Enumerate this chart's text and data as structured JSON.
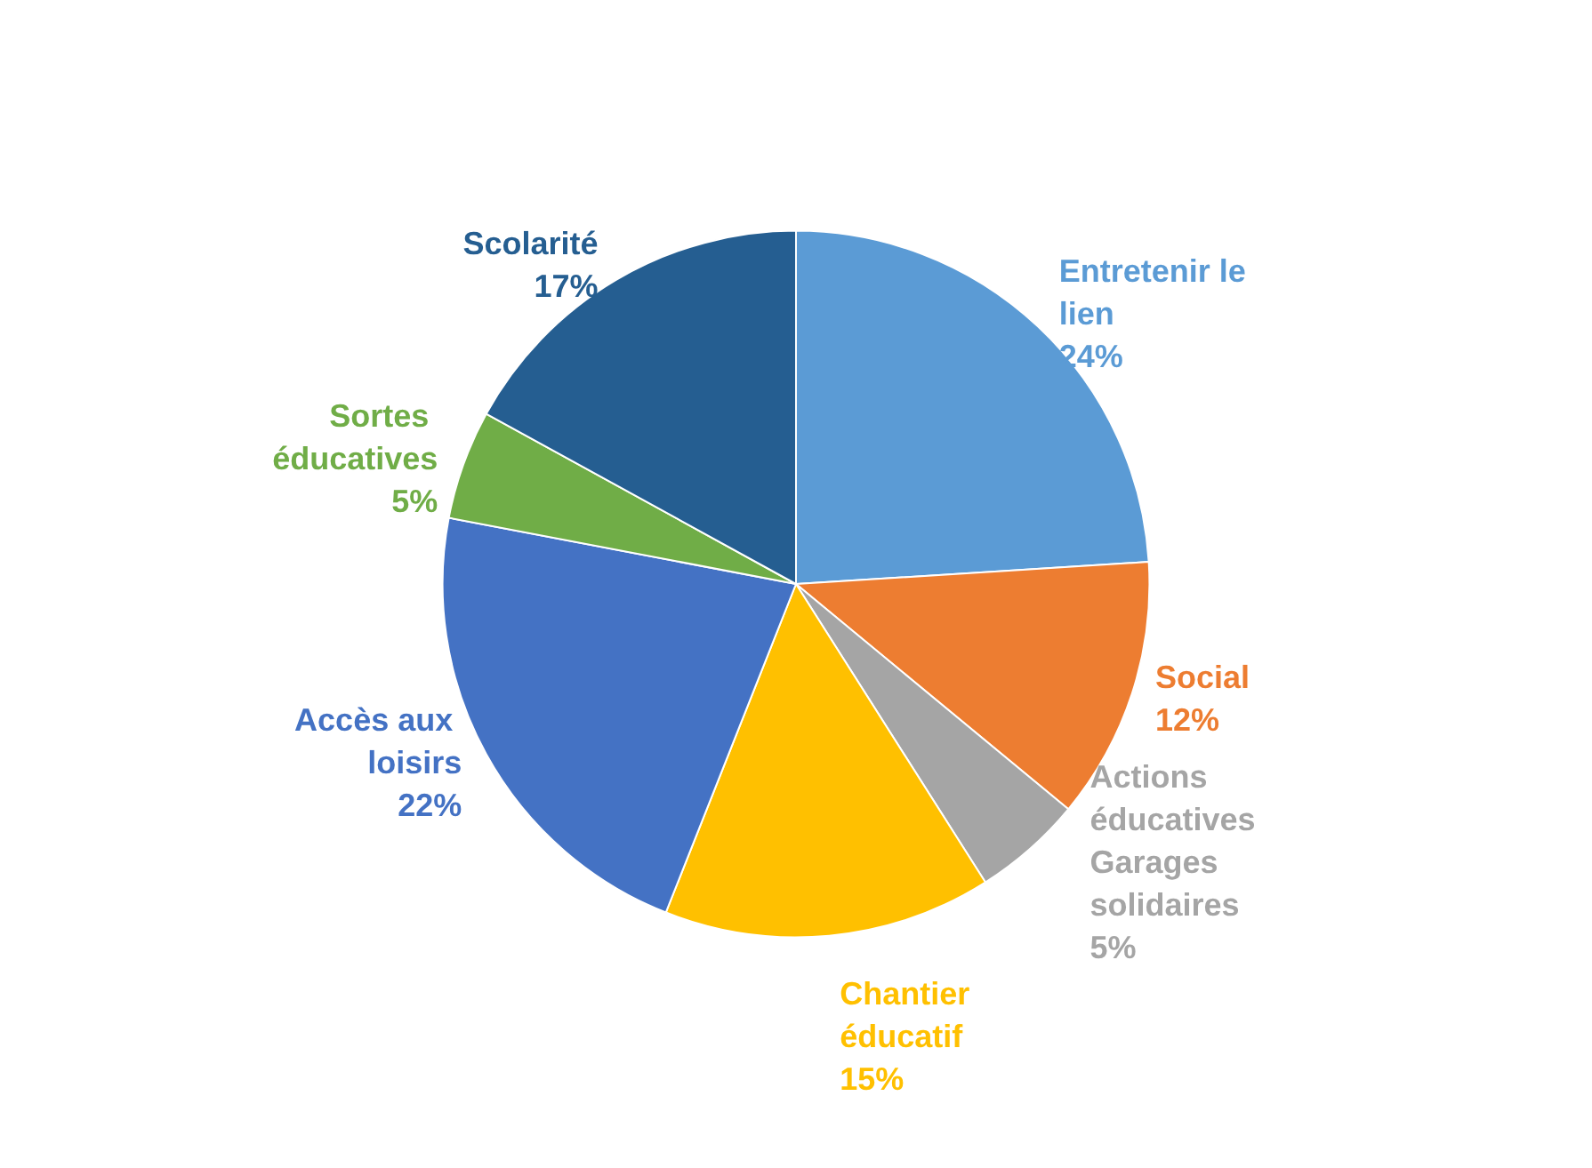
{
  "chart_data": {
    "type": "pie",
    "categories": [
      "Entretenir le lien",
      "Social",
      "Actions éducatives Garages solidaires",
      "Chantier éducatif",
      "Accès aux loisirs",
      "Sortes éducatives",
      "Scolarité"
    ],
    "values": [
      24,
      12,
      5,
      15,
      22,
      5,
      17
    ],
    "value_labels": [
      "24%",
      "12%",
      "5%",
      "15%",
      "22%",
      "5%",
      "17%"
    ],
    "colors": [
      "#5b9bd5",
      "#ed7d31",
      "#a5a5a5",
      "#ffc000",
      "#4472c4",
      "#70ad47",
      "#255e91"
    ],
    "legend": false
  }
}
